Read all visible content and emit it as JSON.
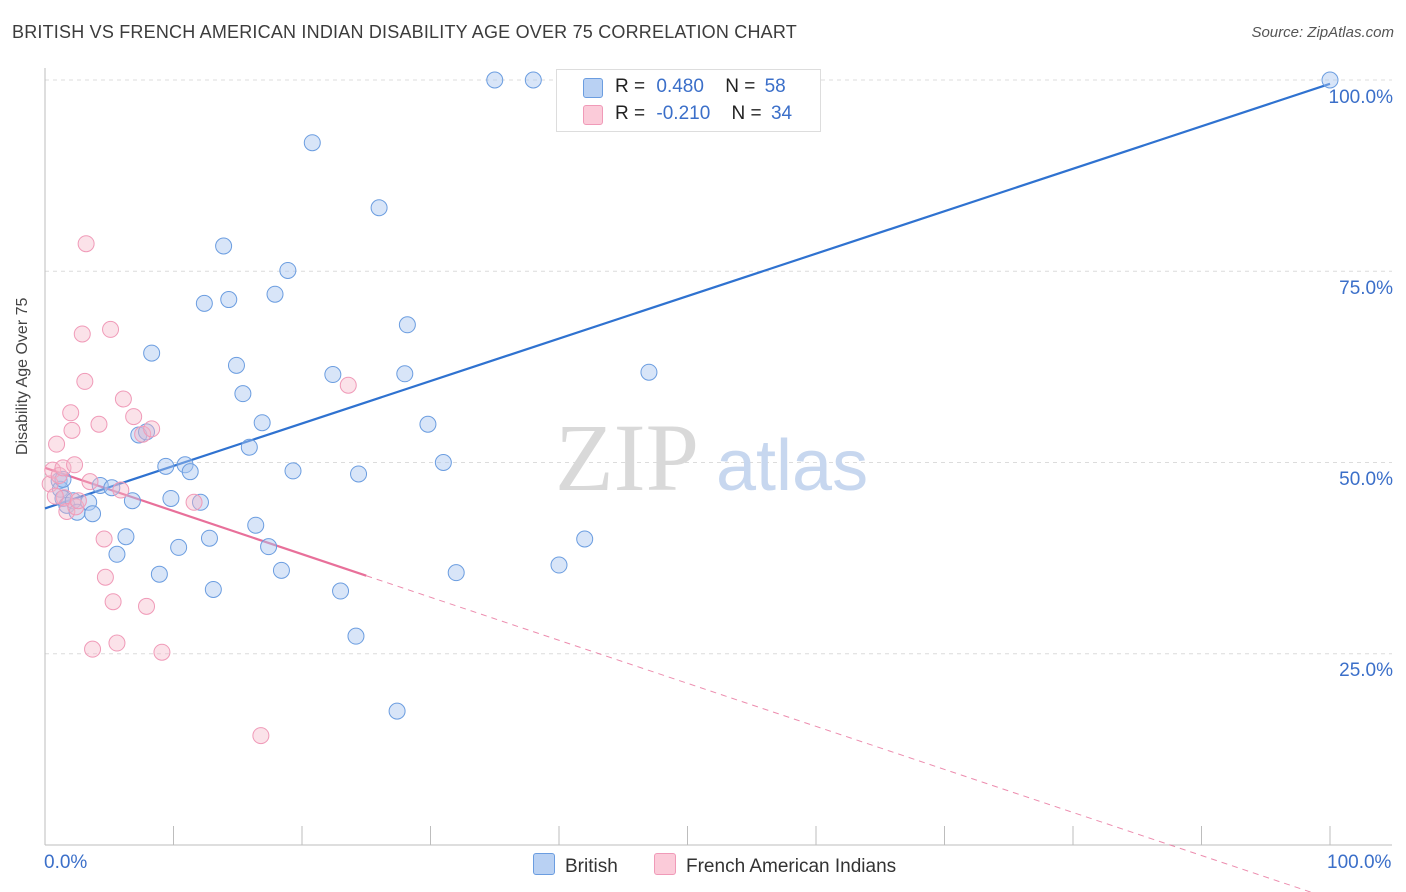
{
  "title": "BRITISH VS FRENCH AMERICAN INDIAN DISABILITY AGE OVER 75 CORRELATION CHART",
  "source": "Source: ZipAtlas.com",
  "watermark": {
    "zip": "ZIP",
    "atlas": "atlas"
  },
  "legend": {
    "british": {
      "r_label": "R =",
      "r_value": "0.480",
      "n_label": "N =",
      "n_value": "58",
      "color": "#a9c6ef"
    },
    "french": {
      "r_label": "R =",
      "r_value": "-0.210",
      "n_label": "N =",
      "n_value": "34",
      "color": "#f4b6c9"
    }
  },
  "bottom_legend": {
    "british": "British",
    "french": "French American Indians"
  },
  "chart_data": {
    "type": "scatter",
    "ylabel": "Disability Age Over 75",
    "xlim": [
      0,
      100
    ],
    "ylim": [
      0,
      100
    ],
    "x_tick_labels": [
      "0.0%",
      "100.0%"
    ],
    "y_tick_labels": [
      "25.0%",
      "50.0%",
      "75.0%",
      "100.0%"
    ],
    "y_ticks": [
      25,
      50,
      75,
      100
    ],
    "grid": true,
    "series": [
      {
        "name": "British",
        "color": "#6b9de0",
        "line_color": "#2f72d0",
        "trend": [
          [
            0,
            44.0
          ],
          [
            100,
            99.5
          ]
        ],
        "points": [
          [
            1.1,
            47.6
          ],
          [
            1.2,
            46.5
          ],
          [
            1.4,
            45.3
          ],
          [
            1.7,
            44.4
          ],
          [
            2.2,
            45.0
          ],
          [
            2.5,
            43.5
          ],
          [
            3.4,
            44.8
          ],
          [
            3.7,
            43.3
          ],
          [
            4.3,
            47.0
          ],
          [
            5.2,
            46.7
          ],
          [
            5.6,
            38.0
          ],
          [
            6.3,
            40.3
          ],
          [
            6.8,
            45.0
          ],
          [
            7.3,
            53.6
          ],
          [
            7.9,
            54.0
          ],
          [
            8.3,
            64.3
          ],
          [
            8.9,
            35.4
          ],
          [
            9.4,
            49.5
          ],
          [
            9.8,
            45.3
          ],
          [
            10.4,
            38.9
          ],
          [
            10.9,
            49.7
          ],
          [
            11.3,
            48.8
          ],
          [
            12.1,
            44.8
          ],
          [
            12.4,
            70.8
          ],
          [
            12.8,
            40.1
          ],
          [
            13.1,
            33.4
          ],
          [
            13.9,
            78.3
          ],
          [
            14.3,
            71.3
          ],
          [
            14.9,
            62.7
          ],
          [
            15.4,
            59.0
          ],
          [
            15.9,
            52.0
          ],
          [
            16.4,
            41.8
          ],
          [
            16.9,
            55.2
          ],
          [
            17.4,
            39.0
          ],
          [
            17.9,
            72.0
          ],
          [
            18.4,
            35.9
          ],
          [
            18.9,
            75.1
          ],
          [
            19.3,
            48.9
          ],
          [
            20.8,
            91.8
          ],
          [
            22.4,
            61.5
          ],
          [
            23.0,
            33.2
          ],
          [
            24.2,
            27.3
          ],
          [
            24.4,
            48.5
          ],
          [
            26.0,
            83.3
          ],
          [
            27.4,
            17.5
          ],
          [
            28.0,
            61.6
          ],
          [
            28.2,
            68.0
          ],
          [
            29.8,
            55.0
          ],
          [
            31.0,
            50.0
          ],
          [
            32.0,
            35.6
          ],
          [
            35.0,
            100.0
          ],
          [
            38.0,
            100.0
          ],
          [
            40.0,
            36.6
          ],
          [
            42.0,
            40.0
          ],
          [
            47.0,
            61.8
          ],
          [
            52.0,
            100.0
          ],
          [
            100.0,
            100.0
          ],
          [
            1.4,
            47.8
          ]
        ]
      },
      {
        "name": "French American Indians",
        "color": "#f09ab8",
        "line_color": "#e8709a",
        "trend": [
          [
            0,
            49.3
          ],
          [
            25,
            35.2
          ]
        ],
        "trend_dashed": [
          [
            25,
            35.2
          ],
          [
            100,
            -7.0
          ]
        ],
        "points": [
          [
            0.4,
            47.2
          ],
          [
            0.6,
            49.0
          ],
          [
            0.9,
            52.4
          ],
          [
            1.1,
            48.3
          ],
          [
            1.4,
            49.3
          ],
          [
            1.5,
            45.4
          ],
          [
            1.7,
            43.6
          ],
          [
            2.0,
            56.5
          ],
          [
            2.1,
            54.2
          ],
          [
            2.4,
            44.2
          ],
          [
            2.6,
            45.0
          ],
          [
            2.9,
            66.8
          ],
          [
            3.1,
            60.6
          ],
          [
            3.2,
            78.6
          ],
          [
            3.5,
            47.5
          ],
          [
            3.7,
            25.6
          ],
          [
            4.2,
            55.0
          ],
          [
            4.6,
            40.0
          ],
          [
            4.7,
            35.0
          ],
          [
            5.1,
            67.4
          ],
          [
            5.3,
            31.8
          ],
          [
            5.6,
            26.4
          ],
          [
            5.9,
            46.4
          ],
          [
            6.1,
            58.3
          ],
          [
            6.9,
            56.0
          ],
          [
            7.6,
            53.7
          ],
          [
            7.9,
            31.2
          ],
          [
            8.3,
            54.4
          ],
          [
            9.1,
            25.2
          ],
          [
            11.6,
            44.8
          ],
          [
            16.8,
            14.3
          ],
          [
            23.6,
            60.1
          ],
          [
            2.3,
            49.7
          ],
          [
            0.8,
            45.6
          ]
        ]
      }
    ]
  }
}
